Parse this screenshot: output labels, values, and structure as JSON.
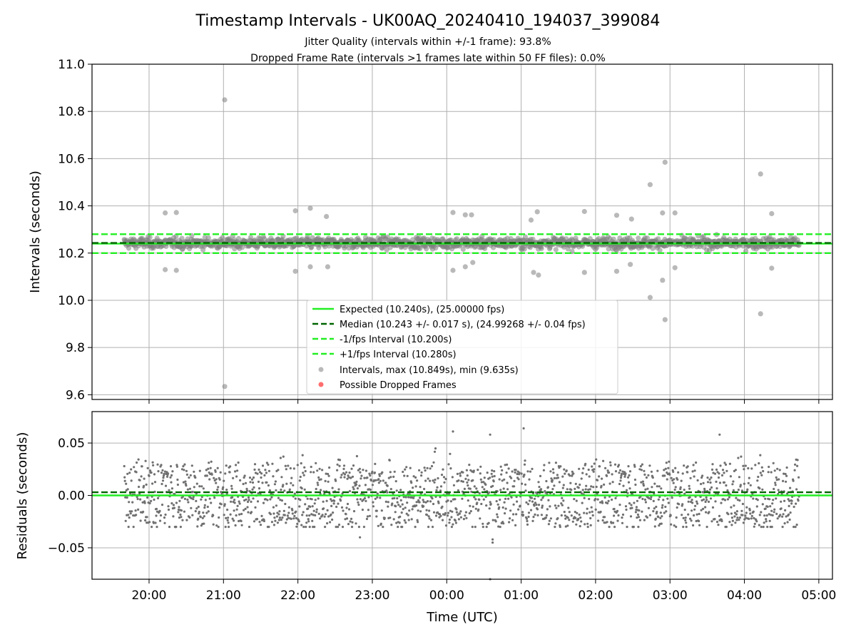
{
  "chart_data": [
    {
      "type": "scatter",
      "title": "Timestamp Intervals - UK00AQ_20240410_194037_399084",
      "subtitle_lines": [
        "Jitter Quality (intervals within +/-1 frame): 93.8%",
        "Dropped Frame Rate (intervals >1 frames late within 50 FF files): 0.0%"
      ],
      "xlabel": "",
      "ylabel": "Intervals (seconds)",
      "ylim": [
        9.58,
        11.0
      ],
      "yticks": [
        9.6,
        9.8,
        10.0,
        10.2,
        10.4,
        10.6,
        10.8,
        11.0
      ],
      "ytick_labels": [
        "9.6",
        "9.8",
        "10.0",
        "10.2",
        "10.4",
        "10.6",
        "10.8",
        "11.0"
      ],
      "x_domain": [
        "19:14",
        "05:11"
      ],
      "grid": true,
      "legend_position": "lower-center",
      "reference_lines": [
        {
          "name": "Expected (10.240s), (25.00000 fps)",
          "y": 10.24,
          "color": "#22ee22",
          "style": "solid"
        },
        {
          "name": "Median (10.243 +/- 0.017 s), (24.99268 +/- 0.04 fps)",
          "y": 10.243,
          "color": "#006400",
          "style": "dashed"
        },
        {
          "name": "-1/fps Interval (10.200s)",
          "y": 10.2,
          "color": "#22ee22",
          "style": "dashed"
        },
        {
          "name": "+1/fps Interval (10.280s)",
          "y": 10.28,
          "color": "#22ee22",
          "style": "dashed"
        }
      ],
      "series": [
        {
          "name": "Intervals, max (10.849s), min (9.635s)",
          "color": "#808080",
          "x_range": [
            "19:40",
            "04:44"
          ],
          "typical_range": [
            10.2,
            10.285
          ],
          "outliers": [
            {
              "x": "21:01",
              "y": 10.849
            },
            {
              "x": "21:01",
              "y": 9.635
            },
            {
              "x": "20:13",
              "y": 10.37
            },
            {
              "x": "20:22",
              "y": 10.372
            },
            {
              "x": "20:13",
              "y": 10.13
            },
            {
              "x": "20:22",
              "y": 10.127
            },
            {
              "x": "21:58",
              "y": 10.379
            },
            {
              "x": "22:10",
              "y": 10.39
            },
            {
              "x": "22:23",
              "y": 10.355
            },
            {
              "x": "21:58",
              "y": 10.123
            },
            {
              "x": "22:10",
              "y": 10.142
            },
            {
              "x": "22:24",
              "y": 10.142
            },
            {
              "x": "00:05",
              "y": 10.372
            },
            {
              "x": "00:15",
              "y": 10.362
            },
            {
              "x": "00:20",
              "y": 10.362
            },
            {
              "x": "00:05",
              "y": 10.127
            },
            {
              "x": "00:15",
              "y": 10.142
            },
            {
              "x": "00:21",
              "y": 10.16
            },
            {
              "x": "01:08",
              "y": 10.34
            },
            {
              "x": "01:13",
              "y": 10.375
            },
            {
              "x": "01:10",
              "y": 10.118
            },
            {
              "x": "01:14",
              "y": 10.107
            },
            {
              "x": "01:51",
              "y": 10.376
            },
            {
              "x": "01:51",
              "y": 10.118
            },
            {
              "x": "02:17",
              "y": 10.36
            },
            {
              "x": "02:29",
              "y": 10.344
            },
            {
              "x": "02:17",
              "y": 10.123
            },
            {
              "x": "02:28",
              "y": 10.152
            },
            {
              "x": "02:44",
              "y": 10.49
            },
            {
              "x": "02:56",
              "y": 10.585
            },
            {
              "x": "02:54",
              "y": 10.37
            },
            {
              "x": "03:04",
              "y": 10.37
            },
            {
              "x": "02:44",
              "y": 10.012
            },
            {
              "x": "02:54",
              "y": 10.085
            },
            {
              "x": "02:56",
              "y": 9.918
            },
            {
              "x": "03:04",
              "y": 10.138
            },
            {
              "x": "04:13",
              "y": 10.535
            },
            {
              "x": "04:22",
              "y": 10.367
            },
            {
              "x": "04:13",
              "y": 9.943
            },
            {
              "x": "04:22",
              "y": 10.136
            }
          ]
        },
        {
          "name": "Possible Dropped Frames",
          "color": "#ff5555",
          "points": []
        }
      ]
    },
    {
      "type": "scatter",
      "xlabel": "Time (UTC)",
      "ylabel": "Residuals (seconds)",
      "ylim": [
        -0.08,
        0.08
      ],
      "yticks": [
        -0.05,
        0.0,
        0.05
      ],
      "ytick_labels": [
        "−0.05",
        "0.00",
        "0.05"
      ],
      "x_domain": [
        "19:14",
        "05:11"
      ],
      "xticks": [
        "20:00",
        "21:00",
        "22:00",
        "23:00",
        "00:00",
        "01:00",
        "02:00",
        "03:00",
        "04:00",
        "05:00"
      ],
      "grid": true,
      "reference_lines": [
        {
          "y": 0.0,
          "color": "#22ee22",
          "style": "solid"
        },
        {
          "y": 0.003,
          "color": "#006400",
          "style": "dashed"
        }
      ],
      "series": [
        {
          "color": "#707070",
          "x_range": [
            "19:40",
            "04:44"
          ],
          "bands": [
            0.02,
            0.0,
            -0.02
          ],
          "typical_range": [
            -0.03,
            0.05
          ],
          "outliers": [
            {
              "x": "00:05",
              "y": 0.061
            },
            {
              "x": "00:35",
              "y": 0.058
            },
            {
              "x": "01:02",
              "y": 0.064
            },
            {
              "x": "03:40",
              "y": 0.058
            },
            {
              "x": "22:50",
              "y": -0.04
            },
            {
              "x": "00:37",
              "y": -0.042
            },
            {
              "x": "00:37",
              "y": -0.045
            },
            {
              "x": "00:35",
              "y": -0.08
            }
          ]
        }
      ]
    }
  ]
}
